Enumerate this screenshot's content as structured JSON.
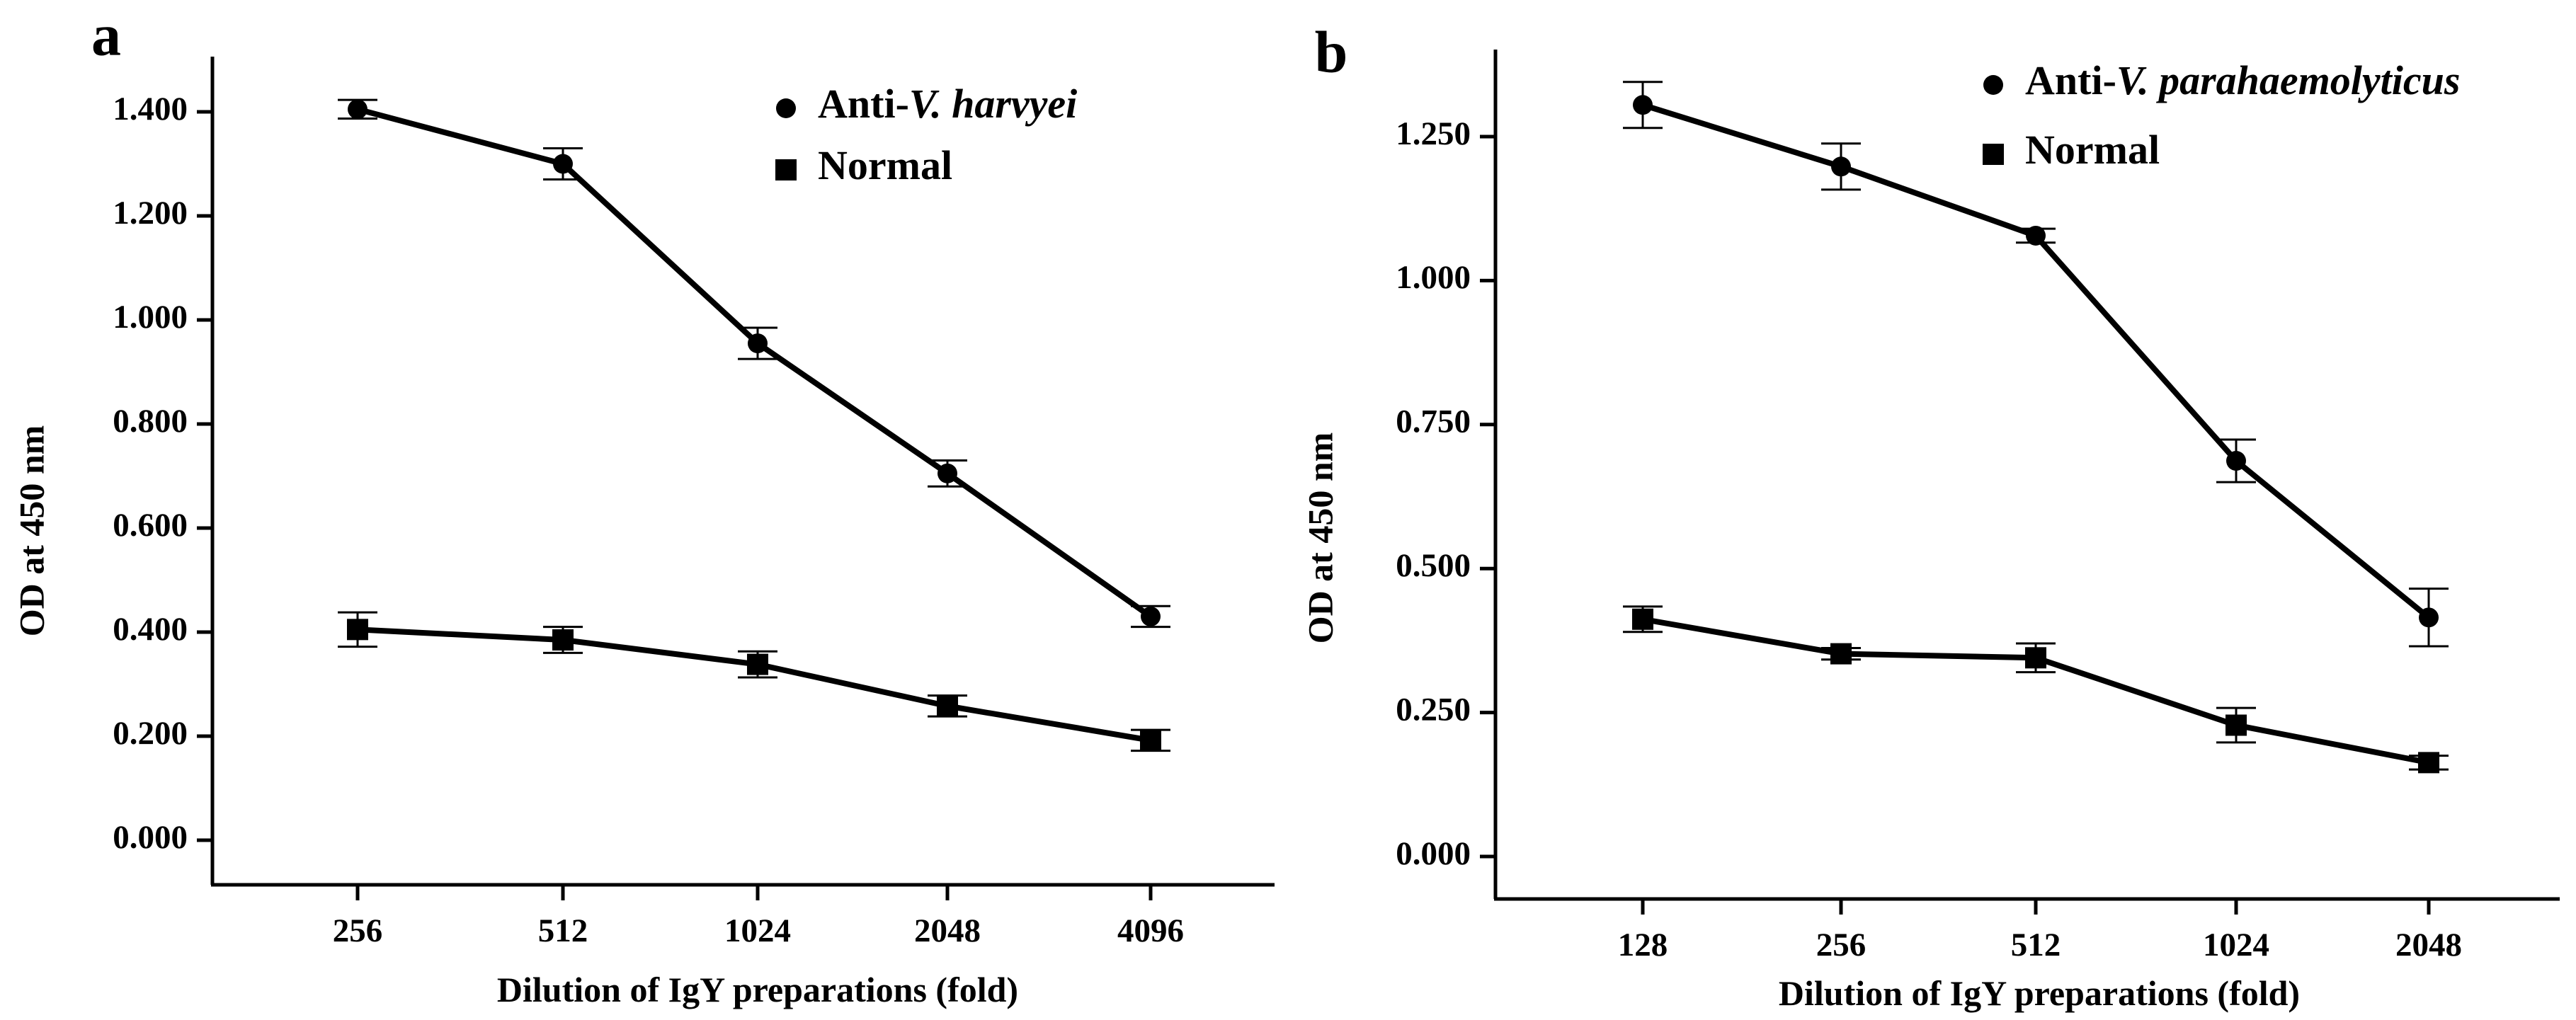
{
  "chart_data": [
    {
      "panel": "a",
      "type": "line",
      "categories": [
        "256",
        "512",
        "1024",
        "2048",
        "4096"
      ],
      "xlabel": "Dilution of IgY preparations (fold)",
      "ylabel": "OD at 450 nm",
      "ylim": [
        0,
        1.4
      ],
      "yticks": [
        "0.000",
        "0.200",
        "0.400",
        "0.600",
        "0.800",
        "1.000",
        "1.200",
        "1.400"
      ],
      "legend_position": "top-right",
      "grid": false,
      "series": [
        {
          "name": "Anti-V. harvyei",
          "name_prefix": "Anti-",
          "name_italic": "V. harvyei",
          "marker": "circle",
          "values": [
            1.405,
            1.3,
            0.955,
            0.705,
            0.43
          ],
          "errors": [
            0.018,
            0.03,
            0.03,
            0.025,
            0.02
          ]
        },
        {
          "name": "Normal",
          "name_prefix": "Normal",
          "name_italic": "",
          "marker": "square",
          "values": [
            0.405,
            0.385,
            0.338,
            0.258,
            0.192
          ],
          "errors": [
            0.033,
            0.025,
            0.025,
            0.02,
            0.02
          ]
        }
      ]
    },
    {
      "panel": "b",
      "type": "line",
      "categories": [
        "128",
        "256",
        "512",
        "1024",
        "2048"
      ],
      "xlabel": "Dilution of IgY preparations (fold)",
      "ylabel": "OD at 450 nm",
      "ylim": [
        0,
        1.25
      ],
      "yticks": [
        "0.000",
        "0.250",
        "0.500",
        "0.750",
        "1.000",
        "1.250"
      ],
      "legend_position": "top-right",
      "grid": false,
      "series": [
        {
          "name": "Anti-V. parahaemolyticus",
          "name_prefix": "Anti-",
          "name_italic": "V. parahaemolyticus",
          "marker": "circle",
          "values": [
            1.305,
            1.198,
            1.078,
            0.687,
            0.415
          ],
          "errors": [
            0.04,
            0.04,
            0.012,
            0.037,
            0.05
          ]
        },
        {
          "name": "Normal",
          "name_prefix": "Normal",
          "name_italic": "",
          "marker": "square",
          "values": [
            0.412,
            0.352,
            0.345,
            0.228,
            0.163
          ],
          "errors": [
            0.022,
            0.01,
            0.025,
            0.03,
            0.012
          ]
        }
      ]
    }
  ]
}
